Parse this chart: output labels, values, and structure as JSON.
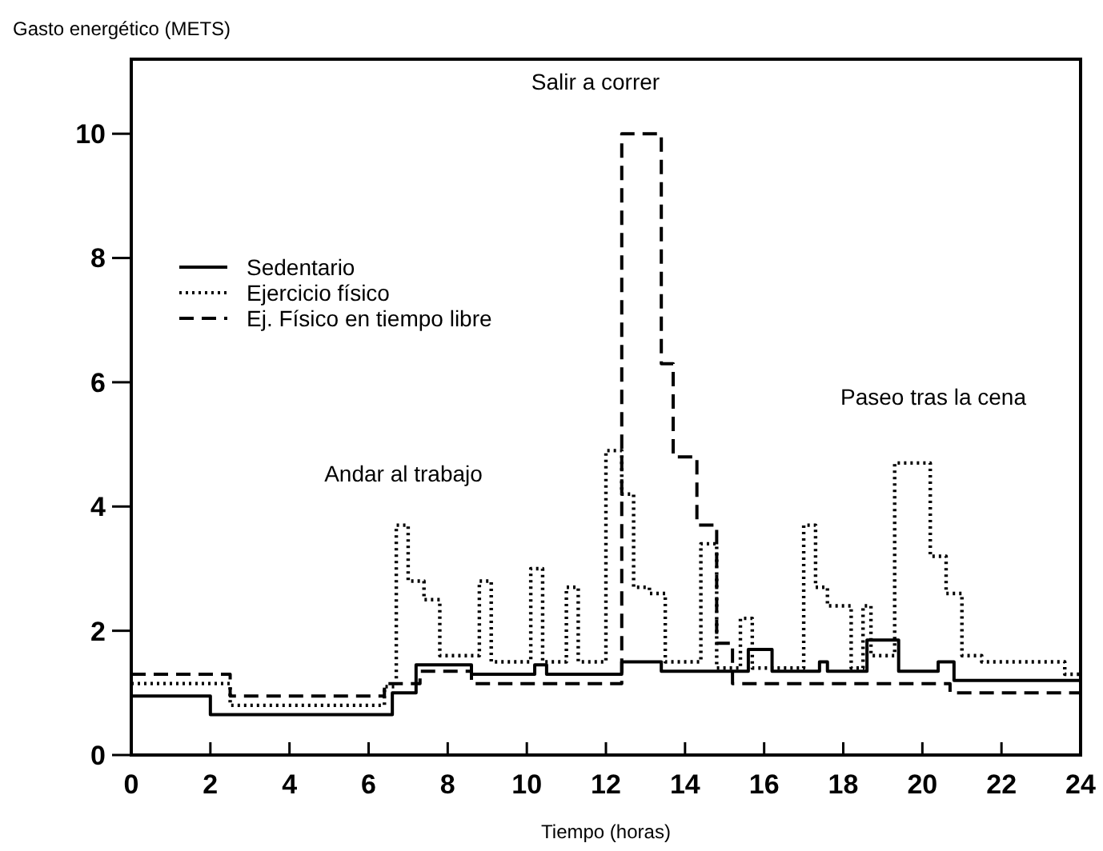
{
  "chart_data": {
    "type": "step",
    "ylabel": "Gasto energético (METS)",
    "xlabel": "Tiempo (horas)",
    "xlim": [
      0,
      24
    ],
    "xticks": [
      0,
      2,
      4,
      6,
      8,
      10,
      12,
      14,
      16,
      18,
      20,
      22,
      24
    ],
    "ylim": [
      0,
      11.2
    ],
    "yticks": [
      0,
      2,
      4,
      6,
      8,
      10
    ],
    "grid": false,
    "legend": "top left",
    "series": [
      {
        "name": "Sedentario",
        "color": "#000000",
        "line_style": "solid",
        "x": [
          0,
          2,
          6.6,
          7.2,
          8.6,
          10.2,
          10.5,
          12.4,
          13.4,
          15.6,
          16.2,
          17.4,
          17.6,
          18.6,
          19.4,
          20.4,
          20.8,
          24
        ],
        "values": [
          0.95,
          0.65,
          1.0,
          1.45,
          1.3,
          1.45,
          1.3,
          1.5,
          1.35,
          1.7,
          1.35,
          1.5,
          1.35,
          1.85,
          1.35,
          1.5,
          1.2,
          1.2
        ]
      },
      {
        "name": "Ejercicio físico",
        "color": "#000000",
        "line_style": "dotted",
        "x": [
          0,
          2.5,
          6.4,
          6.7,
          7.0,
          7.4,
          7.8,
          8.8,
          9.1,
          10.1,
          10.4,
          11.0,
          11.3,
          12.0,
          12.4,
          12.7,
          13.1,
          13.5,
          14.4,
          14.8,
          15.4,
          15.7,
          17.0,
          17.3,
          17.6,
          18.2,
          18.5,
          18.7,
          19.3,
          20.2,
          20.6,
          21.0,
          21.5,
          23.6,
          24
        ],
        "values": [
          1.15,
          0.8,
          1.1,
          3.7,
          2.8,
          2.5,
          1.6,
          2.8,
          1.5,
          3.0,
          1.5,
          2.7,
          1.5,
          4.9,
          4.2,
          2.7,
          2.6,
          1.5,
          3.4,
          1.4,
          2.2,
          1.4,
          3.7,
          2.7,
          2.4,
          1.4,
          2.4,
          1.6,
          4.7,
          3.2,
          2.6,
          1.6,
          1.5,
          1.3,
          1.3
        ]
      },
      {
        "name": "Ej. Físico en tiempo libre",
        "color": "#000000",
        "line_style": "dashed",
        "x": [
          0,
          2.5,
          6.4,
          7.3,
          8.6,
          12.4,
          13.4,
          13.7,
          14.3,
          14.8,
          15.2,
          20.7,
          24
        ],
        "values": [
          1.3,
          0.95,
          1.15,
          1.35,
          1.15,
          10.0,
          6.3,
          4.8,
          3.7,
          1.8,
          1.15,
          1.0,
          1.0
        ]
      }
    ],
    "annotations": [
      "Andar al trabajo",
      "Salir a correr",
      "Paseo tras la cena"
    ]
  }
}
